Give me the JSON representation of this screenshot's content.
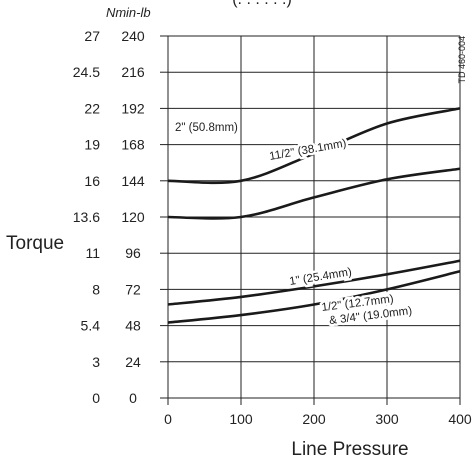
{
  "chart_data": {
    "type": "line",
    "title_fragment": "(. . . . . .)",
    "xlabel": "Line Pressure",
    "ylabel": "Torque",
    "x_ticks": [
      0,
      100,
      200,
      300,
      400
    ],
    "xlim": [
      0,
      400
    ],
    "ylim": [
      0,
      240
    ],
    "y_unit_left": "Nm",
    "y_unit_right": "in-lb",
    "y_ticks_nm": [
      "0",
      "3",
      "5.4",
      "8",
      "11",
      "13.6",
      "16",
      "19",
      "22",
      "24.5",
      "27"
    ],
    "y_ticks_inlb": [
      "0",
      "24",
      "48",
      "72",
      "96",
      "120",
      "144",
      "168",
      "192",
      "216",
      "240"
    ],
    "grid": true,
    "tag": "TD 460-004",
    "series": [
      {
        "name": "2\" (50.8mm)",
        "points": [
          [
            0,
            144
          ],
          [
            100,
            144
          ],
          [
            200,
            162
          ],
          [
            300,
            182
          ],
          [
            400,
            192
          ]
        ]
      },
      {
        "name": "11/2\" (38.1mm)",
        "points": [
          [
            0,
            120
          ],
          [
            100,
            120
          ],
          [
            200,
            133
          ],
          [
            300,
            145
          ],
          [
            400,
            152
          ]
        ]
      },
      {
        "name": "1\" (25.4mm)",
        "points": [
          [
            0,
            62
          ],
          [
            100,
            67
          ],
          [
            200,
            74
          ],
          [
            300,
            82
          ],
          [
            400,
            91
          ]
        ]
      },
      {
        "name": "1/2\" (12.7mm) & 3/4\" (19.0mm)",
        "points": [
          [
            0,
            50
          ],
          [
            100,
            55
          ],
          [
            200,
            62
          ],
          [
            300,
            72
          ],
          [
            400,
            84
          ]
        ]
      }
    ],
    "label_lines": [
      [
        "2\" (50.8mm)"
      ],
      [
        "11/2\" (38.1mm)"
      ],
      [
        "1\" (25.4mm)"
      ],
      [
        "1/2\" (12.7mm)",
        "& 3/4\" (19.0mm)"
      ]
    ]
  }
}
